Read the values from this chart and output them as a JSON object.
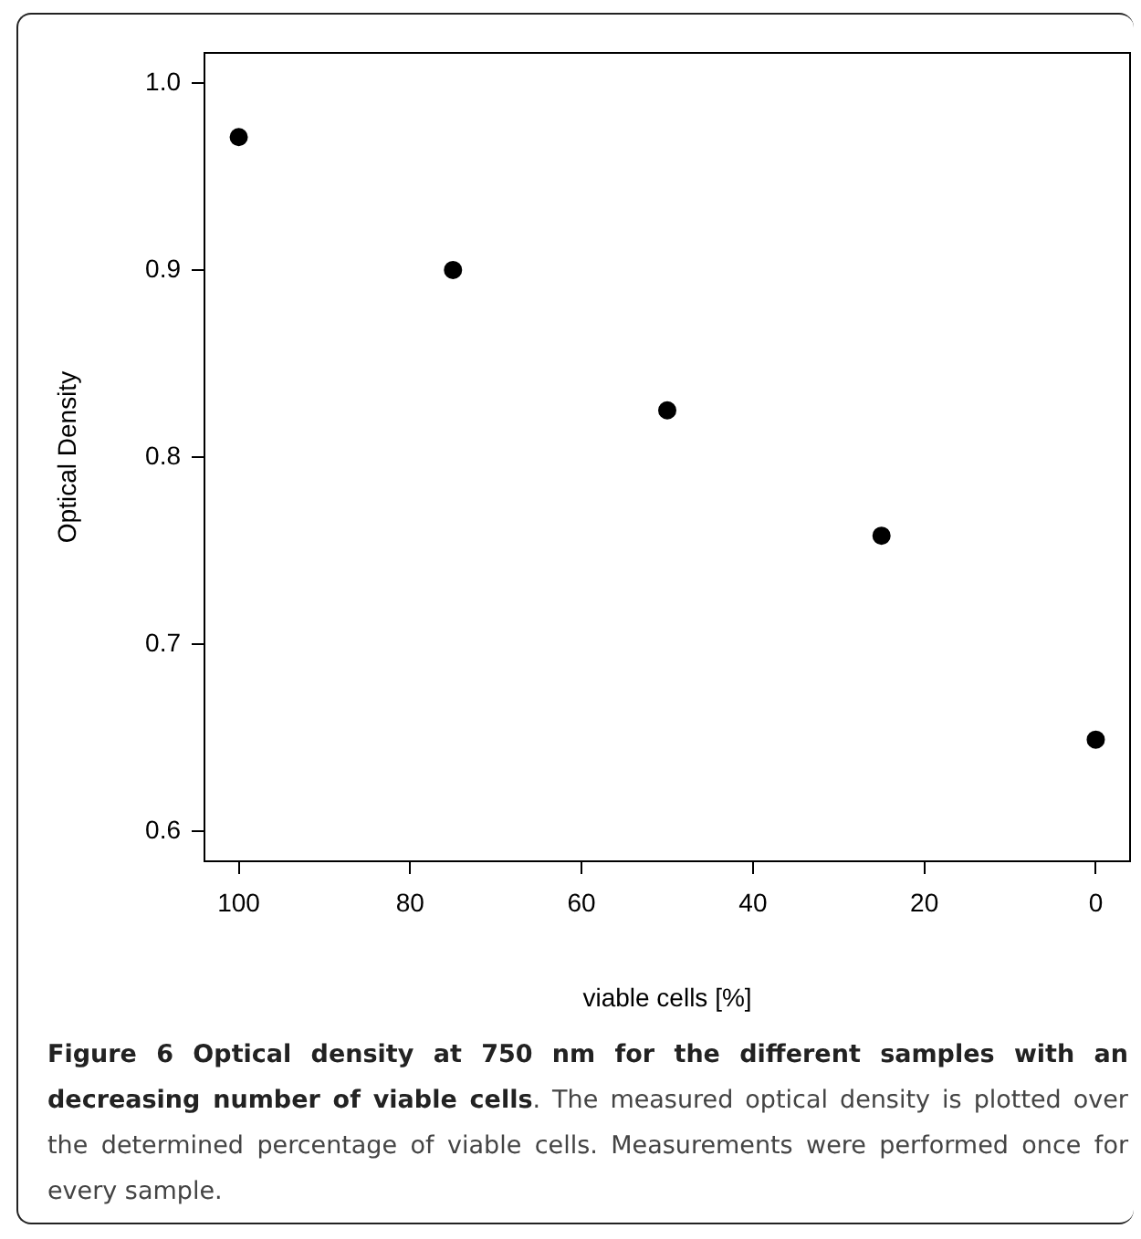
{
  "chart_data": {
    "type": "scatter",
    "title": "Figure 6 Optical density at 750 nm for the different samples with an decreasing number of viable cells",
    "annotations": [
      ". The measured optical density is plotted over the determined percentage of viable cells. Measurements were performed once for every sample."
    ],
    "xlabel": "viable cells [%]",
    "ylabel": "Optical Density",
    "x": [
      100,
      75,
      50,
      25,
      0
    ],
    "series": [
      {
        "color": "#000000",
        "values": [
          0.971,
          0.9,
          0.825,
          0.758,
          0.649
        ]
      }
    ],
    "xlim": [
      104,
      -4
    ],
    "xticks": [
      100,
      80,
      60,
      40,
      20,
      0
    ],
    "ylim": [
      0.584,
      1.016
    ],
    "yticks": [
      {
        "value": 0.6,
        "label": "0.6"
      },
      {
        "value": 0.7,
        "label": "0.7"
      },
      {
        "value": 0.8,
        "label": "0.8"
      },
      {
        "value": 0.9,
        "label": "0.9"
      },
      {
        "value": 1.0,
        "label": "1.0"
      }
    ],
    "grid": false,
    "legend": false,
    "marker": "circle"
  }
}
